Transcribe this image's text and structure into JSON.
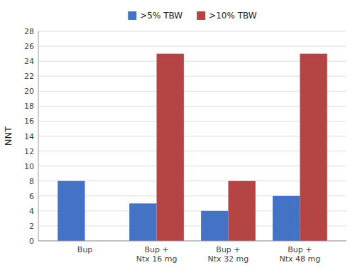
{
  "chart_data": {
    "type": "bar",
    "categories": [
      "Bup",
      "Bup +\nNtx 16 mg",
      "Bup +\nNtx 32 mg",
      "Bup +\nNtx 48 mg"
    ],
    "series": [
      {
        "name": ">5% TBW",
        "color": "#4472C4",
        "values": [
          8,
          5,
          4,
          6
        ]
      },
      {
        "name": ">10% TBW",
        "color": "#B54545",
        "values": [
          null,
          25,
          8,
          25
        ]
      }
    ],
    "ylabel": "NNT",
    "ylim": [
      0,
      28
    ],
    "yticks": [
      0,
      2,
      4,
      6,
      8,
      10,
      12,
      14,
      16,
      18,
      20,
      22,
      24,
      26,
      28
    ],
    "grid": true,
    "legend": "top"
  }
}
